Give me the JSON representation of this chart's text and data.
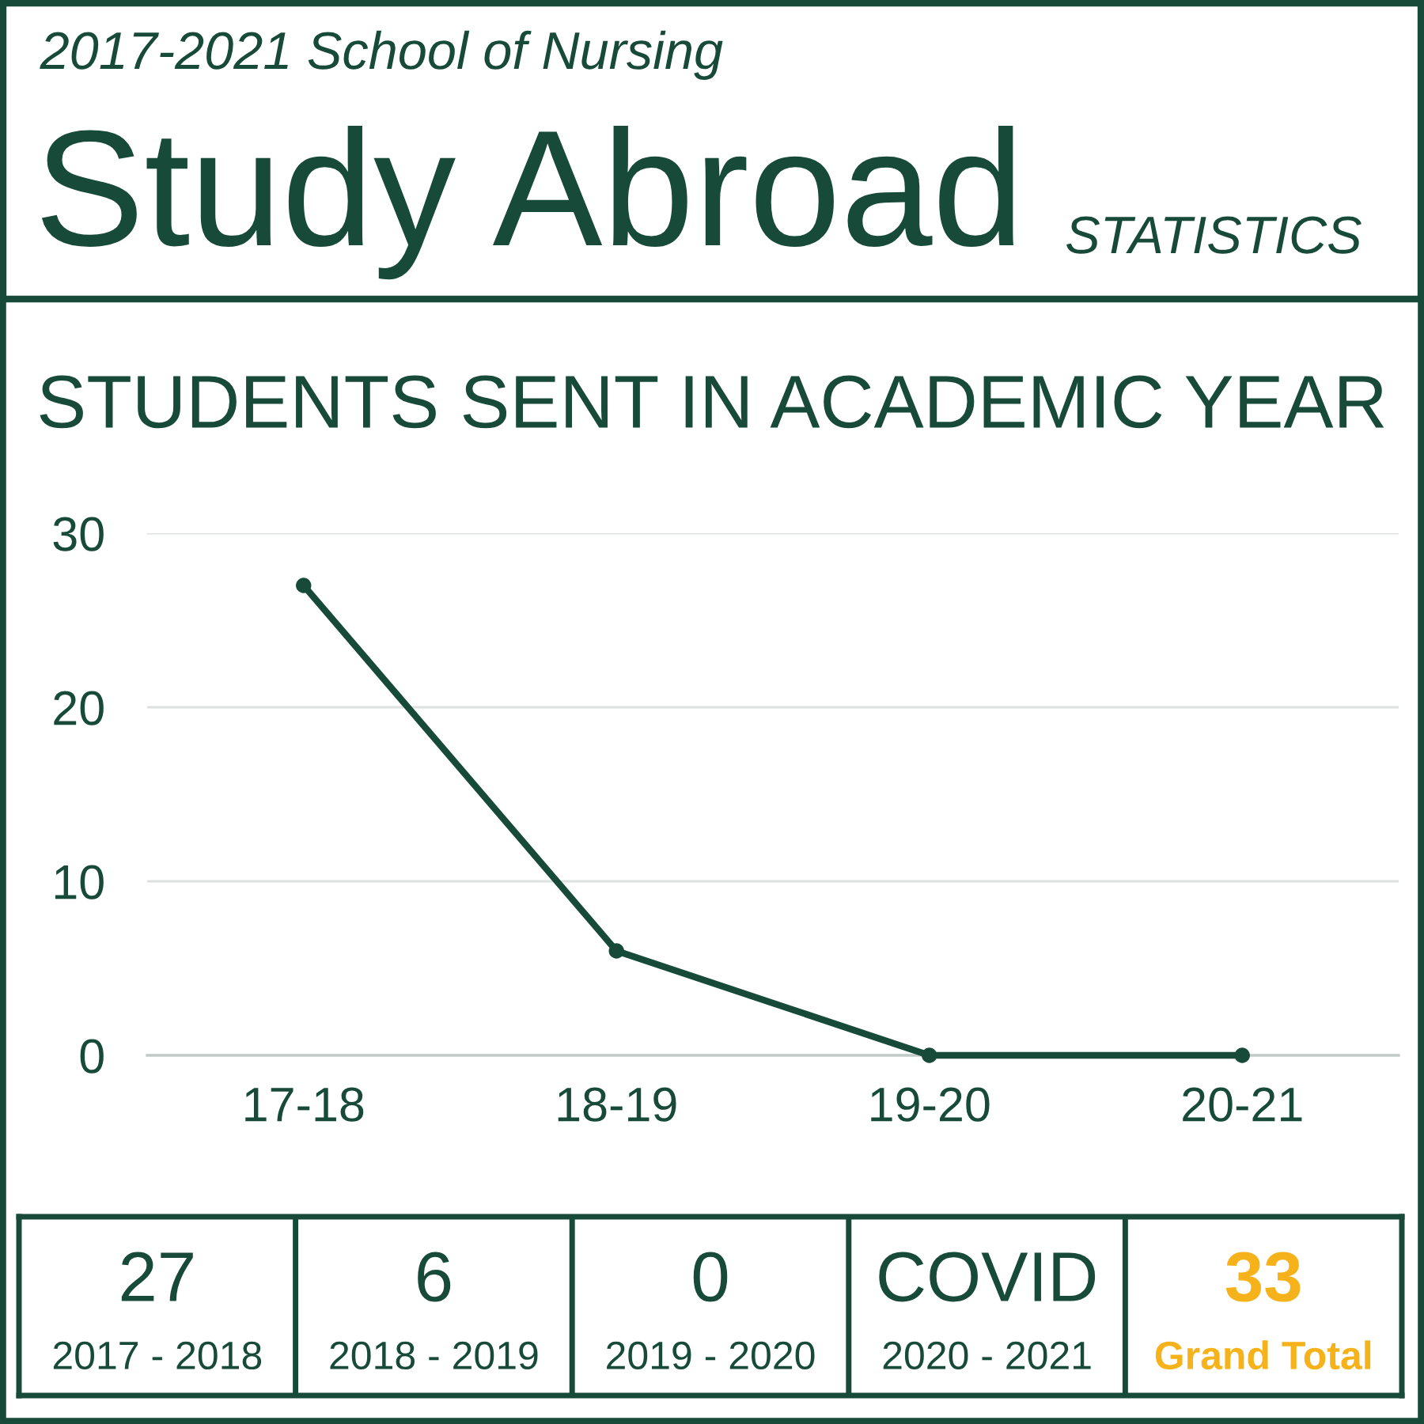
{
  "chart_data": [
    {
      "type": "other",
      "subtitle": "2017-2021 School of Nursing",
      "title": "Study Abroad",
      "annotations": [
        "STATISTICS"
      ]
    },
    {
      "type": "line",
      "title": "STUDENTS SENT IN ACADEMIC YEAR",
      "categories": [
        "17-18",
        "18-19",
        "19-20",
        "20-21"
      ],
      "series": [
        {
          "color": "#174a38",
          "values": [
            27,
            6,
            0,
            0
          ]
        }
      ],
      "ylim": [
        0,
        30
      ],
      "yticks": [
        0,
        10,
        20,
        30
      ],
      "grid": "y",
      "marker": "circle",
      "line_style": "solid"
    },
    {
      "type": "other",
      "annotations": [
        "27",
        "2017 - 2018",
        "6",
        "2018 - 2019",
        "0",
        "2019 - 2020",
        "COVID",
        "2020 - 2021",
        "33",
        "Grand Total"
      ],
      "colors": [
        "#174a38",
        "#174a38",
        "#174a38",
        "#174a38",
        "#f6b21b"
      ]
    }
  ]
}
